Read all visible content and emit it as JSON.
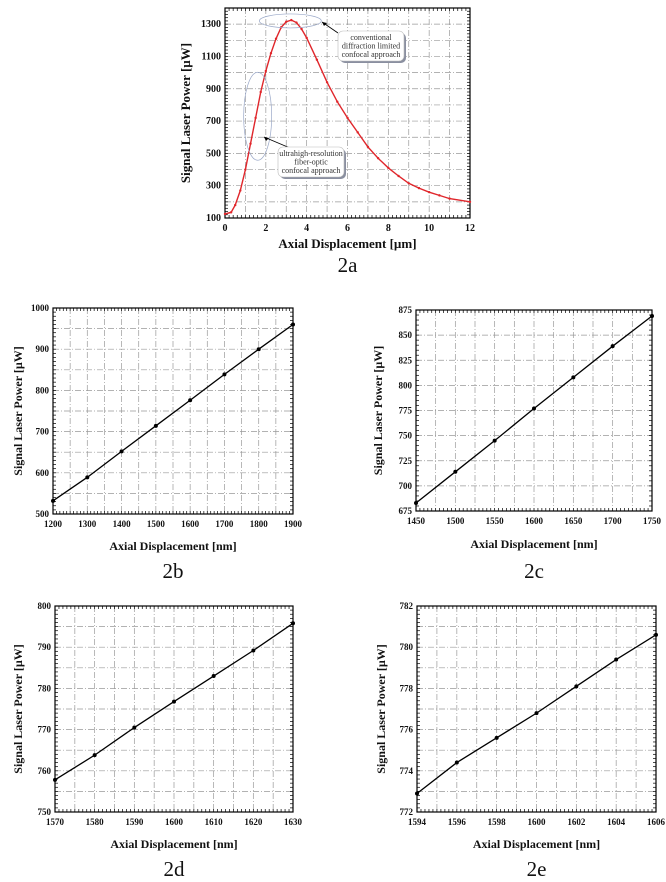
{
  "chart_data": [
    {
      "id": "2a",
      "type": "line",
      "panel_label": "2a",
      "xlabel": "Axial Displacement [µm]",
      "ylabel": "Signal Laser Power [µW]",
      "xlim": [
        0,
        12
      ],
      "ylim": [
        100,
        1400
      ],
      "xticks": [
        0,
        2,
        4,
        6,
        8,
        10,
        12
      ],
      "yticks": [
        100,
        300,
        500,
        700,
        900,
        1100,
        1300
      ],
      "grid": true,
      "series_color": "#e0262b",
      "x": [
        0,
        0.3,
        0.5,
        0.75,
        1,
        1.25,
        1.5,
        1.75,
        2,
        2.25,
        2.5,
        2.75,
        3,
        3.25,
        3.5,
        3.75,
        4,
        4.5,
        5,
        5.5,
        6,
        6.5,
        7,
        7.5,
        8,
        8.5,
        9,
        9.5,
        10,
        10.5,
        11,
        12
      ],
      "y": [
        125,
        135,
        180,
        270,
        400,
        560,
        720,
        880,
        1010,
        1120,
        1210,
        1280,
        1315,
        1325,
        1310,
        1270,
        1215,
        1080,
        940,
        820,
        720,
        630,
        540,
        470,
        410,
        360,
        315,
        285,
        260,
        240,
        220,
        200
      ],
      "annotations": [
        {
          "lines": [
            "conventional",
            "diffraction limited",
            "confocal approach"
          ]
        },
        {
          "lines": [
            "ultrahigh-resolution",
            "fiber-optic",
            "confocal approach"
          ]
        }
      ]
    },
    {
      "id": "2b",
      "type": "line",
      "panel_label": "2b",
      "xlabel": "Axial Displacement [nm]",
      "ylabel": "Signal Laser Power [µW]",
      "xlim": [
        1200,
        1900
      ],
      "ylim": [
        500,
        1000
      ],
      "xticks": [
        1200,
        1300,
        1400,
        1500,
        1600,
        1700,
        1800,
        1900
      ],
      "yticks": [
        500,
        600,
        700,
        800,
        900,
        1000
      ],
      "grid": true,
      "series_color": "#000000",
      "x": [
        1200,
        1300,
        1400,
        1500,
        1600,
        1700,
        1800,
        1900
      ],
      "y": [
        532,
        589,
        652,
        714,
        776,
        839,
        900,
        960
      ]
    },
    {
      "id": "2c",
      "type": "line",
      "panel_label": "2c",
      "xlabel": "Axial Displacement [nm]",
      "ylabel": "Signal Laser Power [µW]",
      "xlim": [
        1450,
        1750
      ],
      "ylim": [
        675,
        875
      ],
      "xticks": [
        1450,
        1500,
        1550,
        1600,
        1650,
        1700,
        1750
      ],
      "yticks": [
        675,
        700,
        725,
        750,
        775,
        800,
        825,
        850,
        875
      ],
      "grid": true,
      "series_color": "#000000",
      "x": [
        1450,
        1500,
        1550,
        1600,
        1650,
        1700,
        1750
      ],
      "y": [
        683,
        714,
        745,
        777,
        808,
        839,
        869
      ]
    },
    {
      "id": "2d",
      "type": "line",
      "panel_label": "2d",
      "xlabel": "Axial Displacement [nm]",
      "ylabel": "Signal Laser Power [µW]",
      "xlim": [
        1570,
        1630
      ],
      "ylim": [
        750,
        800
      ],
      "xticks": [
        1570,
        1580,
        1590,
        1600,
        1610,
        1620,
        1630
      ],
      "yticks": [
        750,
        760,
        770,
        780,
        790,
        800
      ],
      "grid": true,
      "series_color": "#000000",
      "x": [
        1570,
        1580,
        1590,
        1600,
        1610,
        1620,
        1630
      ],
      "y": [
        757.8,
        763.8,
        770.5,
        776.8,
        783.0,
        789.2,
        795.8
      ]
    },
    {
      "id": "2e",
      "type": "line",
      "panel_label": "2e",
      "xlabel": "Axial Displacement [nm]",
      "ylabel": "Signal Laser Power [µW]",
      "xlim": [
        1594,
        1606
      ],
      "ylim": [
        772,
        782
      ],
      "xticks": [
        1594,
        1596,
        1598,
        1600,
        1602,
        1604,
        1606
      ],
      "yticks": [
        772,
        774,
        776,
        778,
        780,
        782
      ],
      "grid": true,
      "series_color": "#000000",
      "x": [
        1594,
        1596,
        1598,
        1600,
        1602,
        1604,
        1606
      ],
      "y": [
        772.9,
        774.4,
        775.6,
        776.8,
        778.1,
        779.4,
        780.6
      ]
    }
  ]
}
